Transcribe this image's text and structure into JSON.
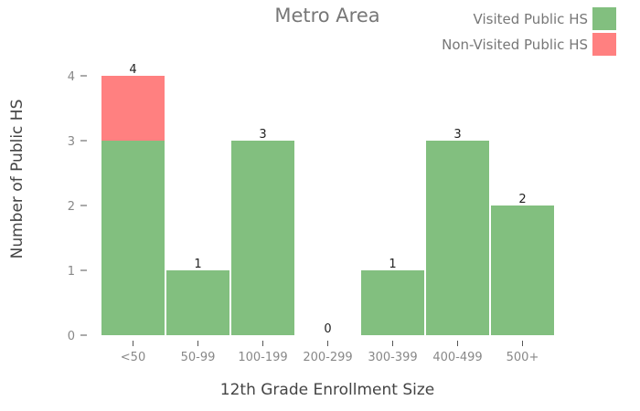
{
  "chart_data": {
    "type": "bar",
    "stacked": true,
    "title": "Metro Area",
    "xlabel": "12th Grade Enrollment Size",
    "ylabel": "Number of Public HS",
    "categories": [
      "<50",
      "50-99",
      "100-199",
      "200-299",
      "300-399",
      "400-499",
      "500+"
    ],
    "series": [
      {
        "name": "Visited Public HS",
        "color": "#82bf7f",
        "values": [
          3,
          1,
          3,
          0,
          1,
          3,
          2
        ]
      },
      {
        "name": "Non-Visited Public HS",
        "color": "#ff8080",
        "values": [
          1,
          0,
          0,
          0,
          0,
          0,
          0
        ]
      }
    ],
    "totals": [
      4,
      1,
      3,
      0,
      1,
      3,
      2
    ],
    "ylim": [
      0,
      4
    ],
    "yticks": [
      0,
      1,
      2,
      3,
      4
    ],
    "grid": false,
    "legend_position": "top-right"
  }
}
